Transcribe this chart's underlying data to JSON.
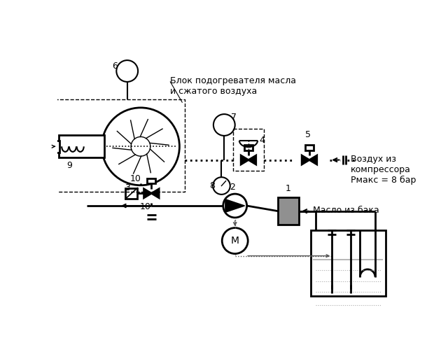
{
  "bg_color": "#ffffff",
  "line_color": "#000000",
  "gray_color": "#888888",
  "label_blok": "Блок подогревателя масла\nи сжатого воздуха",
  "label_vozduh": "Воздух из\nкомпрессора\nРмакс = 8 бар",
  "label_maslo": "Масло из бака",
  "label_M": "М"
}
